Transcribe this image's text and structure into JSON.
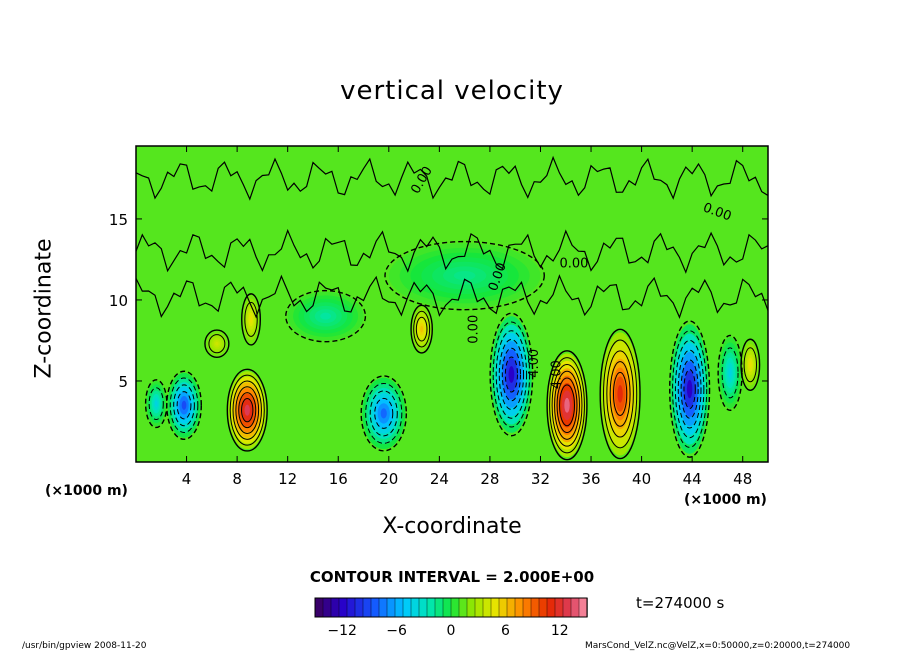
{
  "chart_data": {
    "type": "heatmap",
    "title": "vertical velocity",
    "xlabel": "X-coordinate",
    "ylabel": "Z-coordinate",
    "x_unit_left": "(×1000 m)",
    "x_unit_right": "(×1000 m)",
    "xlim": [
      0,
      50
    ],
    "ylim": [
      0,
      19.5
    ],
    "x_ticks": [
      4,
      8,
      12,
      16,
      20,
      24,
      28,
      32,
      36,
      40,
      44,
      48
    ],
    "y_ticks": [
      5,
      10,
      15
    ],
    "contour_labels": [
      "0.00",
      "0.00",
      "0.00",
      "0.00",
      "0.00",
      "4.00",
      "4.00"
    ],
    "contour_interval_text": "CONTOUR INTERVAL = 2.000E+00",
    "colorbar": {
      "min": -15,
      "max": 15,
      "ticks": [
        -12,
        -6,
        0,
        6,
        12
      ]
    },
    "time_text": "t=274000 s",
    "cells": [
      {
        "x": 3.8,
        "z": 3.5,
        "w": -9,
        "rx": 1.3,
        "rz": 2.0
      },
      {
        "x": 1.6,
        "z": 3.6,
        "w": -4,
        "rx": 0.8,
        "rz": 1.4
      },
      {
        "x": 8.8,
        "z": 3.2,
        "w": 13,
        "rx": 1.5,
        "rz": 2.4
      },
      {
        "x": 6.4,
        "z": 7.3,
        "w": 4,
        "rx": 0.9,
        "rz": 0.8
      },
      {
        "x": 9.1,
        "z": 8.8,
        "w": 5,
        "rx": 0.7,
        "rz": 1.5
      },
      {
        "x": 19.6,
        "z": 3.0,
        "w": -8,
        "rx": 1.7,
        "rz": 2.2
      },
      {
        "x": 22.6,
        "z": 8.2,
        "w": 6,
        "rx": 0.8,
        "rz": 1.4
      },
      {
        "x": 29.7,
        "z": 5.4,
        "w": -12,
        "rx": 1.6,
        "rz": 3.6
      },
      {
        "x": 34.1,
        "z": 3.5,
        "w": 14,
        "rx": 1.5,
        "rz": 3.2
      },
      {
        "x": 38.3,
        "z": 4.2,
        "w": 11,
        "rx": 1.5,
        "rz": 3.8
      },
      {
        "x": 43.8,
        "z": 4.5,
        "w": -12,
        "rx": 1.5,
        "rz": 4.0
      },
      {
        "x": 47.0,
        "z": 5.5,
        "w": -4,
        "rx": 0.9,
        "rz": 2.2
      },
      {
        "x": 48.6,
        "z": 6.0,
        "w": 5,
        "rx": 0.7,
        "rz": 1.5
      },
      {
        "x": 15.0,
        "z": 9.0,
        "w": -2,
        "rx": 3.0,
        "rz": 1.5
      },
      {
        "x": 26.0,
        "z": 11.5,
        "w": -1.5,
        "rx": 6.0,
        "rz": 2.0
      }
    ]
  },
  "footer": {
    "left": "/usr/bin/gpview   2008-11-20",
    "right": "MarsCond_VelZ.nc@VelZ,x=0:50000,z=0:20000,t=274000"
  }
}
